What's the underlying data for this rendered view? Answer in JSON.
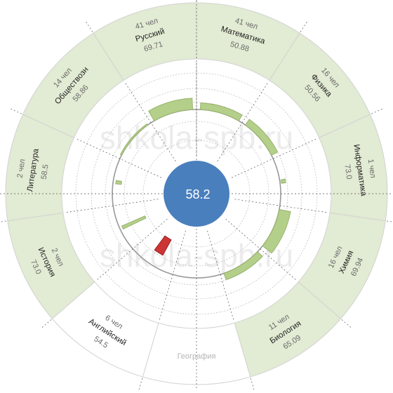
{
  "chart_data": {
    "type": "radial-bar",
    "center_value": "58.2",
    "baseline": 58.2,
    "watermark": "shkola-spb.ru",
    "colors": {
      "ring_fill": "#e2ebd3",
      "ring_border": "#d3d3d3",
      "bar_positive": "#b3cf89",
      "bar_negative": "#cd3535",
      "bar_border_positive": "#98b46d",
      "bar_border_negative": "#9a2222",
      "center": "#4a7fbd",
      "guide": "#bbbbbb",
      "axis": "#555555"
    },
    "segments": [
      {
        "subject": "Математика",
        "count": "41 чел",
        "score": "50.88",
        "score_value": 50.88,
        "has_data": true
      },
      {
        "subject": "Физика",
        "count": "16 чел",
        "score": "50.56",
        "score_value": 50.56,
        "has_data": true
      },
      {
        "subject": "Информатика",
        "count": "1 чел",
        "score": "73.0",
        "score_value": 73.0,
        "has_data": true
      },
      {
        "subject": "Химия",
        "count": "16 чел",
        "score": "69.94",
        "score_value": 69.94,
        "has_data": true
      },
      {
        "subject": "Биология",
        "count": "11 чел",
        "score": "65.09",
        "score_value": 65.09,
        "has_data": true
      },
      {
        "subject": "География",
        "count": "",
        "score": "",
        "score_value": null,
        "has_data": false
      },
      {
        "subject": "Английский",
        "count": "6 чел",
        "score": "54.5",
        "score_value": 54.5,
        "has_data": true,
        "highlight": false
      },
      {
        "subject": "История",
        "count": "2 чел",
        "score": "73.0",
        "score_value": 73.0,
        "has_data": true
      },
      {
        "subject": "Литература",
        "count": "2 чел",
        "score": "58.5",
        "score_value": 58.5,
        "has_data": true
      },
      {
        "subject": "Обществозн",
        "count": "14 чел",
        "score": "58.86",
        "score_value": 58.86,
        "has_data": true
      },
      {
        "subject": "Русский",
        "count": "41 чел",
        "score": "69.71",
        "score_value": 69.71,
        "has_data": true
      }
    ],
    "bars": [
      {
        "subject": "Математика",
        "value": 50.88,
        "sign": "positive"
      },
      {
        "subject": "Физика",
        "value": 50.56,
        "sign": "positive"
      },
      {
        "subject": "Информатика",
        "value": 73.0,
        "sign": "positive"
      },
      {
        "subject": "Химия",
        "value": 69.94,
        "sign": "positive"
      },
      {
        "subject": "Биология",
        "value": 65.09,
        "sign": "positive"
      },
      {
        "subject": "Английский",
        "value": 54.5,
        "sign": "negative"
      },
      {
        "subject": "История",
        "value": 73.0,
        "sign": "positive"
      },
      {
        "subject": "Литература",
        "value": 58.5,
        "sign": "positive"
      },
      {
        "subject": "Обществозн",
        "value": 58.86,
        "sign": "positive"
      },
      {
        "subject": "Русский",
        "value": 69.71,
        "sign": "positive"
      }
    ]
  }
}
